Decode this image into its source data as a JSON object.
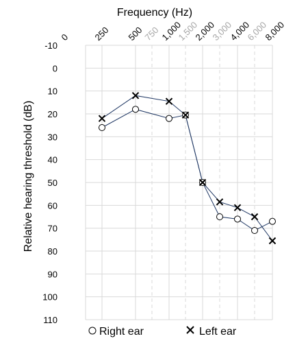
{
  "chart_data": {
    "type": "line",
    "title": "",
    "xlabel": "Frequency (Hz)",
    "ylabel": "Relative hearing threshold (dB)",
    "x_ticks": [
      {
        "label": "0",
        "value": 0,
        "style": "normal",
        "gridline": false
      },
      {
        "label": "250",
        "value": 250,
        "style": "normal",
        "gridline": "solid"
      },
      {
        "label": "500",
        "value": 500,
        "style": "normal",
        "gridline": "solid"
      },
      {
        "label": "750",
        "value": 750,
        "style": "light",
        "gridline": "dashed"
      },
      {
        "label": "1,000",
        "value": 1000,
        "style": "normal",
        "gridline": "solid"
      },
      {
        "label": "1,500",
        "value": 1500,
        "style": "light",
        "gridline": "dashed"
      },
      {
        "label": "2,000",
        "value": 2000,
        "style": "normal",
        "gridline": "solid"
      },
      {
        "label": "3,000",
        "value": 3000,
        "style": "light",
        "gridline": "dashed"
      },
      {
        "label": "4,000",
        "value": 4000,
        "style": "normal",
        "gridline": "solid"
      },
      {
        "label": "6,000",
        "value": 6000,
        "style": "light",
        "gridline": "dashed"
      },
      {
        "label": "8,000",
        "value": 8000,
        "style": "normal",
        "gridline": "solid"
      }
    ],
    "x_scale": "audiogram (octave-spaced categories)",
    "ylim": [
      110,
      -10
    ],
    "y_inverted": true,
    "y_ticks": [
      -10,
      0,
      10,
      20,
      30,
      40,
      50,
      60,
      70,
      80,
      90,
      100,
      110
    ],
    "grid": true,
    "legend_position": "bottom",
    "series": [
      {
        "name": "Right ear",
        "marker": "circle",
        "points": [
          {
            "x": 250,
            "y": 26
          },
          {
            "x": 500,
            "y": 18
          },
          {
            "x": 1000,
            "y": 22
          },
          {
            "x": 1500,
            "y": 20.5
          },
          {
            "x": 2000,
            "y": 50
          },
          {
            "x": 3000,
            "y": 65
          },
          {
            "x": 4000,
            "y": 66
          },
          {
            "x": 6000,
            "y": 71
          },
          {
            "x": 8000,
            "y": 67
          }
        ]
      },
      {
        "name": "Left ear",
        "marker": "x",
        "points": [
          {
            "x": 250,
            "y": 22
          },
          {
            "x": 500,
            "y": 12
          },
          {
            "x": 1000,
            "y": 14.5
          },
          {
            "x": 1500,
            "y": 20.5
          },
          {
            "x": 2000,
            "y": 50
          },
          {
            "x": 3000,
            "y": 58.5
          },
          {
            "x": 4000,
            "y": 61
          },
          {
            "x": 6000,
            "y": 65
          },
          {
            "x": 8000,
            "y": 75.5
          }
        ]
      }
    ],
    "colors": {
      "line": "#203864",
      "grid": "#d9d9d9",
      "light_tick": "#a6a6a6"
    }
  }
}
